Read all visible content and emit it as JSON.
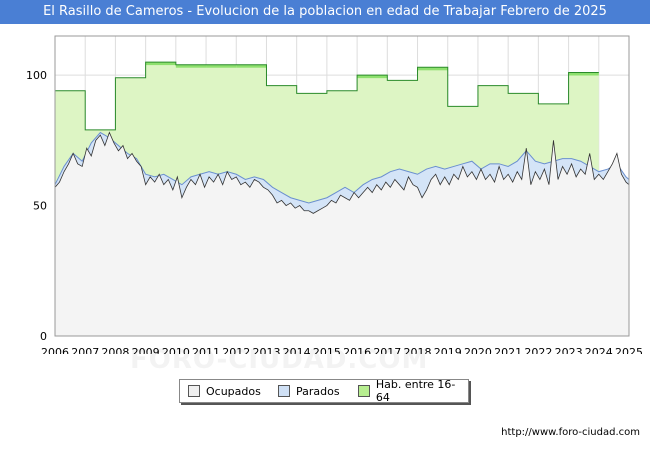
{
  "header": {
    "title": "El Rasillo de Cameros - Evolucion de la poblacion en edad de Trabajar Febrero de 2025"
  },
  "watermark": "FORO-CIUDAD.COM",
  "footer": {
    "url": "http://www.foro-ciudad.com"
  },
  "colors": {
    "title_bar": "#4a7fd4",
    "hab": "#ddf5c4",
    "hab_line": "#2a8a2a",
    "hab_top_fill": "#8ee06e",
    "parados": "#d4e4f7",
    "parados_line": "#6a8fcf",
    "ocupados": "#f4f4f4",
    "ocupados_line": "#333333",
    "grid": "#dddddd"
  },
  "legend": {
    "items": [
      {
        "label": "Ocupados",
        "color": "#f0f0f0"
      },
      {
        "label": "Parados",
        "color": "#cfe0f5"
      },
      {
        "label": "Hab. entre 16-64",
        "color": "#b7ee90"
      }
    ]
  },
  "chart_data": {
    "type": "area",
    "title": "El Rasillo de Cameros - Evolucion de la poblacion en edad de Trabajar Febrero de 2025",
    "xlabel": "",
    "ylabel": "",
    "xlim": [
      2006,
      2025
    ],
    "ylim": [
      0,
      115
    ],
    "x_ticks": [
      "2006",
      "2007",
      "2008",
      "2009",
      "2010",
      "2011",
      "2012",
      "2013",
      "2014",
      "2015",
      "2016",
      "2017",
      "2018",
      "2019",
      "2020",
      "2021",
      "2022",
      "2023",
      "2024",
      "2025"
    ],
    "y_ticks": [
      0,
      50,
      100
    ],
    "hab_16_64": {
      "name": "Hab. entre 16-64",
      "steps": [
        {
          "year": 2006,
          "value": 94
        },
        {
          "year": 2007,
          "value": 79
        },
        {
          "year": 2008,
          "value": 99
        },
        {
          "year": 2009,
          "value": 105
        },
        {
          "year": 2010,
          "value": 104
        },
        {
          "year": 2011,
          "value": 104
        },
        {
          "year": 2012,
          "value": 104
        },
        {
          "year": 2013,
          "value": 96
        },
        {
          "year": 2014,
          "value": 93
        },
        {
          "year": 2015,
          "value": 94
        },
        {
          "year": 2016,
          "value": 100
        },
        {
          "year": 2017,
          "value": 98
        },
        {
          "year": 2018,
          "value": 103
        },
        {
          "year": 2019,
          "value": 88
        },
        {
          "year": 2020,
          "value": 96
        },
        {
          "year": 2021,
          "value": 93
        },
        {
          "year": 2022,
          "value": 89
        },
        {
          "year": 2023,
          "value": 101
        },
        {
          "year": 2024,
          "value": null
        }
      ]
    },
    "parados_plus_ocupados": {
      "name": "Parados",
      "points": [
        [
          2006.0,
          58
        ],
        [
          2006.3,
          65
        ],
        [
          2006.6,
          70
        ],
        [
          2006.9,
          67
        ],
        [
          2007.2,
          74
        ],
        [
          2007.5,
          78
        ],
        [
          2007.8,
          76
        ],
        [
          2008.1,
          73
        ],
        [
          2008.4,
          70
        ],
        [
          2008.7,
          68
        ],
        [
          2009.0,
          62
        ],
        [
          2009.3,
          61
        ],
        [
          2009.6,
          62
        ],
        [
          2009.9,
          60
        ],
        [
          2010.2,
          58
        ],
        [
          2010.5,
          61
        ],
        [
          2010.8,
          62
        ],
        [
          2011.1,
          63
        ],
        [
          2011.4,
          62
        ],
        [
          2011.7,
          63
        ],
        [
          2012.0,
          62
        ],
        [
          2012.3,
          60
        ],
        [
          2012.6,
          61
        ],
        [
          2012.9,
          60
        ],
        [
          2013.2,
          57
        ],
        [
          2013.5,
          55
        ],
        [
          2013.8,
          53
        ],
        [
          2014.1,
          52
        ],
        [
          2014.4,
          51
        ],
        [
          2014.7,
          52
        ],
        [
          2015.0,
          53
        ],
        [
          2015.3,
          55
        ],
        [
          2015.6,
          57
        ],
        [
          2015.9,
          55
        ],
        [
          2016.2,
          58
        ],
        [
          2016.5,
          60
        ],
        [
          2016.8,
          61
        ],
        [
          2017.1,
          63
        ],
        [
          2017.4,
          64
        ],
        [
          2017.7,
          63
        ],
        [
          2018.0,
          62
        ],
        [
          2018.3,
          64
        ],
        [
          2018.6,
          65
        ],
        [
          2018.9,
          64
        ],
        [
          2019.2,
          65
        ],
        [
          2019.5,
          66
        ],
        [
          2019.8,
          67
        ],
        [
          2020.1,
          64
        ],
        [
          2020.4,
          66
        ],
        [
          2020.7,
          66
        ],
        [
          2021.0,
          65
        ],
        [
          2021.3,
          67
        ],
        [
          2021.6,
          71
        ],
        [
          2021.9,
          67
        ],
        [
          2022.2,
          66
        ],
        [
          2022.5,
          67
        ],
        [
          2022.8,
          68
        ],
        [
          2023.1,
          68
        ],
        [
          2023.4,
          67
        ],
        [
          2023.7,
          65
        ],
        [
          2024.0,
          63
        ],
        [
          2024.3,
          64
        ],
        [
          2024.6,
          66
        ],
        [
          2024.9,
          61
        ],
        [
          2025.0,
          60
        ]
      ]
    },
    "ocupados": {
      "name": "Ocupados",
      "points": [
        [
          2006.0,
          57
        ],
        [
          2006.15,
          59
        ],
        [
          2006.3,
          63
        ],
        [
          2006.45,
          66
        ],
        [
          2006.6,
          70
        ],
        [
          2006.75,
          66
        ],
        [
          2006.9,
          65
        ],
        [
          2007.05,
          72
        ],
        [
          2007.2,
          69
        ],
        [
          2007.35,
          75
        ],
        [
          2007.5,
          77
        ],
        [
          2007.65,
          73
        ],
        [
          2007.8,
          78
        ],
        [
          2007.95,
          74
        ],
        [
          2008.1,
          71
        ],
        [
          2008.25,
          73
        ],
        [
          2008.4,
          68
        ],
        [
          2008.55,
          70
        ],
        [
          2008.7,
          67
        ],
        [
          2008.85,
          65
        ],
        [
          2009.0,
          58
        ],
        [
          2009.15,
          61
        ],
        [
          2009.3,
          59
        ],
        [
          2009.45,
          62
        ],
        [
          2009.6,
          58
        ],
        [
          2009.75,
          60
        ],
        [
          2009.9,
          56
        ],
        [
          2010.05,
          61
        ],
        [
          2010.2,
          53
        ],
        [
          2010.35,
          57
        ],
        [
          2010.5,
          60
        ],
        [
          2010.65,
          58
        ],
        [
          2010.8,
          62
        ],
        [
          2010.95,
          57
        ],
        [
          2011.1,
          61
        ],
        [
          2011.25,
          59
        ],
        [
          2011.4,
          62
        ],
        [
          2011.55,
          58
        ],
        [
          2011.7,
          63
        ],
        [
          2011.85,
          60
        ],
        [
          2012.0,
          61
        ],
        [
          2012.15,
          58
        ],
        [
          2012.3,
          59
        ],
        [
          2012.45,
          57
        ],
        [
          2012.6,
          60
        ],
        [
          2012.75,
          59
        ],
        [
          2012.9,
          57
        ],
        [
          2013.05,
          56
        ],
        [
          2013.2,
          54
        ],
        [
          2013.35,
          51
        ],
        [
          2013.5,
          52
        ],
        [
          2013.65,
          50
        ],
        [
          2013.8,
          51
        ],
        [
          2013.95,
          49
        ],
        [
          2014.1,
          50
        ],
        [
          2014.25,
          48
        ],
        [
          2014.4,
          48
        ],
        [
          2014.55,
          47
        ],
        [
          2014.7,
          48
        ],
        [
          2014.85,
          49
        ],
        [
          2015.0,
          50
        ],
        [
          2015.15,
          52
        ],
        [
          2015.3,
          51
        ],
        [
          2015.45,
          54
        ],
        [
          2015.6,
          53
        ],
        [
          2015.75,
          52
        ],
        [
          2015.9,
          55
        ],
        [
          2016.05,
          53
        ],
        [
          2016.2,
          55
        ],
        [
          2016.35,
          57
        ],
        [
          2016.5,
          55
        ],
        [
          2016.65,
          58
        ],
        [
          2016.8,
          56
        ],
        [
          2016.95,
          59
        ],
        [
          2017.1,
          57
        ],
        [
          2017.25,
          60
        ],
        [
          2017.4,
          58
        ],
        [
          2017.55,
          56
        ],
        [
          2017.7,
          61
        ],
        [
          2017.85,
          58
        ],
        [
          2018.0,
          57
        ],
        [
          2018.15,
          53
        ],
        [
          2018.3,
          56
        ],
        [
          2018.45,
          60
        ],
        [
          2018.6,
          62
        ],
        [
          2018.75,
          58
        ],
        [
          2018.9,
          61
        ],
        [
          2019.05,
          58
        ],
        [
          2019.2,
          62
        ],
        [
          2019.35,
          60
        ],
        [
          2019.5,
          65
        ],
        [
          2019.65,
          61
        ],
        [
          2019.8,
          63
        ],
        [
          2019.95,
          60
        ],
        [
          2020.1,
          64
        ],
        [
          2020.25,
          60
        ],
        [
          2020.4,
          62
        ],
        [
          2020.55,
          59
        ],
        [
          2020.7,
          65
        ],
        [
          2020.85,
          60
        ],
        [
          2021.0,
          62
        ],
        [
          2021.15,
          59
        ],
        [
          2021.3,
          63
        ],
        [
          2021.45,
          60
        ],
        [
          2021.6,
          72
        ],
        [
          2021.75,
          58
        ],
        [
          2021.9,
          63
        ],
        [
          2022.05,
          60
        ],
        [
          2022.2,
          64
        ],
        [
          2022.35,
          58
        ],
        [
          2022.5,
          75
        ],
        [
          2022.65,
          60
        ],
        [
          2022.8,
          65
        ],
        [
          2022.95,
          62
        ],
        [
          2023.1,
          66
        ],
        [
          2023.25,
          61
        ],
        [
          2023.4,
          64
        ],
        [
          2023.55,
          62
        ],
        [
          2023.7,
          70
        ],
        [
          2023.85,
          60
        ],
        [
          2024.0,
          62
        ],
        [
          2024.15,
          60
        ],
        [
          2024.3,
          63
        ],
        [
          2024.45,
          66
        ],
        [
          2024.6,
          70
        ],
        [
          2024.75,
          62
        ],
        [
          2024.9,
          59
        ],
        [
          2025.0,
          58
        ]
      ]
    }
  }
}
